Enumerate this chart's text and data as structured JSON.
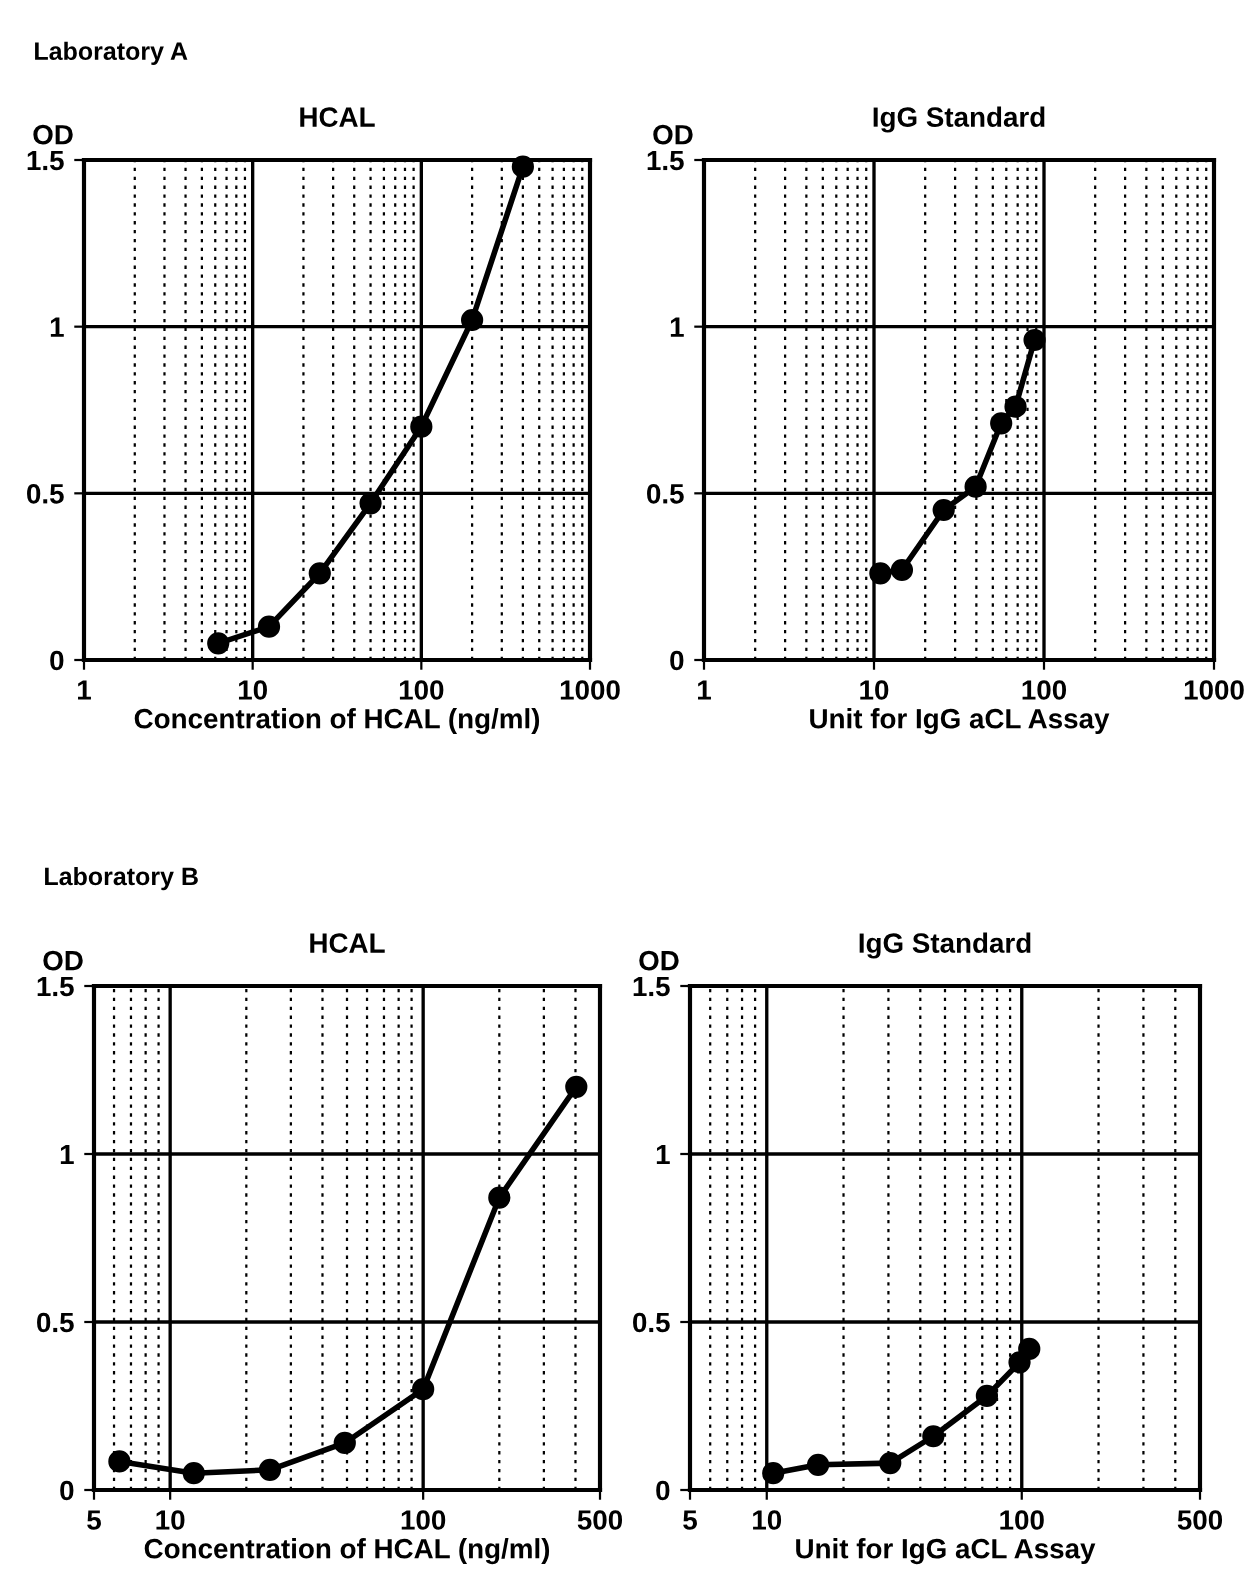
{
  "chart_data": [
    {
      "type": "line",
      "title": "HCAL",
      "xlabel": "Concentration of HCAL (ng/ml)",
      "ylabel": "OD",
      "annotations": [
        "Laboratory A"
      ],
      "log": "x",
      "grid": true,
      "marker": "circle",
      "line_style": "solid",
      "xlim": [
        1,
        1000
      ],
      "xticks": [
        1,
        10,
        100,
        1000
      ],
      "ylim": [
        0,
        1.5
      ],
      "yticks": [
        0,
        0.5,
        1,
        1.5
      ],
      "series": [
        {
          "color": "#000000",
          "x": [
            6.25,
            12.5,
            25,
            50,
            100,
            200,
            400
          ],
          "values": [
            0.05,
            0.1,
            0.26,
            0.47,
            0.7,
            1.02,
            1.48
          ]
        }
      ]
    },
    {
      "type": "line",
      "title": "IgG Standard",
      "xlabel": "Unit for IgG aCL Assay",
      "ylabel": "OD",
      "log": "x",
      "grid": true,
      "marker": "circle",
      "line_style": "solid",
      "xlim": [
        1,
        1000
      ],
      "xticks": [
        1,
        10,
        100,
        1000
      ],
      "ylim": [
        0,
        1.5
      ],
      "yticks": [
        0,
        0.5,
        1,
        1.5
      ],
      "series": [
        {
          "color": "#000000",
          "x": [
            10.9,
            14.6,
            25.7,
            39.6,
            56,
            68,
            88
          ],
          "values": [
            0.26,
            0.27,
            0.45,
            0.52,
            0.71,
            0.76,
            0.96
          ]
        }
      ]
    },
    {
      "type": "line",
      "title": "HCAL",
      "xlabel": "Concentration of HCAL (ng/ml)",
      "ylabel": "OD",
      "annotations": [
        "Laboratory B"
      ],
      "log": "x",
      "grid": true,
      "marker": "circle",
      "line_style": "solid",
      "xlim": [
        5,
        500
      ],
      "xticks": [
        5,
        10,
        100,
        500
      ],
      "ylim": [
        0,
        1.5
      ],
      "yticks": [
        0,
        0.5,
        1,
        1.5
      ],
      "series": [
        {
          "color": "#000000",
          "x": [
            6.3,
            12.4,
            24.8,
            49,
            100,
            200,
            403
          ],
          "values": [
            0.085,
            0.05,
            0.06,
            0.14,
            0.3,
            0.87,
            1.2
          ]
        }
      ]
    },
    {
      "type": "line",
      "title": "IgG Standard",
      "xlabel": "Unit for IgG aCL Assay",
      "ylabel": "OD",
      "log": "x",
      "grid": true,
      "marker": "circle",
      "line_style": "solid",
      "xlim": [
        5,
        500
      ],
      "xticks": [
        5,
        10,
        100,
        500
      ],
      "ylim": [
        0,
        1.5
      ],
      "yticks": [
        0,
        0.5,
        1,
        1.5
      ],
      "series": [
        {
          "color": "#000000",
          "x": [
            10.6,
            15.9,
            30.5,
            45,
            73,
            98,
            107
          ],
          "values": [
            0.05,
            0.075,
            0.08,
            0.16,
            0.28,
            0.38,
            0.42
          ]
        }
      ]
    }
  ]
}
